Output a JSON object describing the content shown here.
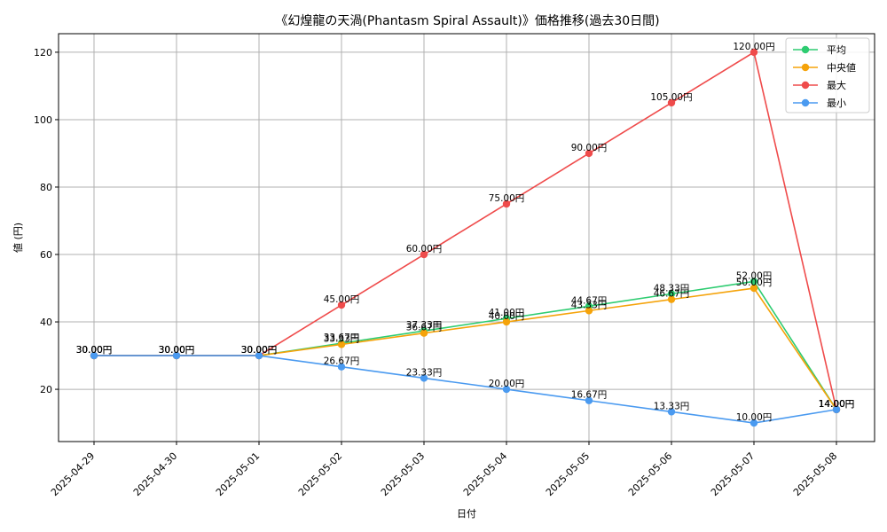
{
  "chart_data": {
    "type": "line",
    "title": "《幻煌龍の天渦(Phantasm Spiral Assault)》価格推移(過去30日間)",
    "xlabel": "日付",
    "ylabel": "値 (円)",
    "categories": [
      "2025-04-29",
      "2025-04-30",
      "2025-05-01",
      "2025-05-02",
      "2025-05-03",
      "2025-05-04",
      "2025-05-05",
      "2025-05-06",
      "2025-05-07",
      "2025-05-08"
    ],
    "ylim": [
      4.5,
      125.5
    ],
    "yticks": [
      20,
      40,
      60,
      80,
      100,
      120
    ],
    "grid": true,
    "legend_position": "top-right",
    "series": [
      {
        "name": "平均",
        "color": "#2ecc71",
        "values": [
          30,
          30,
          30,
          33.67,
          37.33,
          41.0,
          44.67,
          48.33,
          52.0,
          14.0
        ],
        "labels": [
          "30.00円",
          "30.00円",
          "30.00円",
          "33.67円",
          "37.33円",
          "41.00円",
          "44.67円",
          "48.33円",
          "52.00円",
          "14.00円"
        ]
      },
      {
        "name": "中央値",
        "color": "#f5a30a",
        "values": [
          30,
          30,
          30,
          33.33,
          36.67,
          40.0,
          43.33,
          46.67,
          50.0,
          14.0
        ],
        "labels": [
          "30.00円",
          "30.00円",
          "30.00円",
          "33.33円",
          "36.67円",
          "40.00円",
          "43.33円",
          "46.67円",
          "50.00円",
          "14.00円"
        ]
      },
      {
        "name": "最大",
        "color": "#ef4b4b",
        "values": [
          30,
          30,
          30,
          45,
          60,
          75,
          90,
          105,
          120,
          14.0
        ],
        "labels": [
          "30.00円",
          "30.00円",
          "30.00円",
          "45.00円",
          "60.00円",
          "75.00円",
          "90.00円",
          "105.00円",
          "120.00円",
          "14.00円"
        ]
      },
      {
        "name": "最小",
        "color": "#4a9af0",
        "values": [
          30,
          30,
          30,
          26.67,
          23.33,
          20.0,
          16.67,
          13.33,
          10.0,
          14.0
        ],
        "labels": [
          "30.00円",
          "30.00円",
          "30.00円",
          "26.67円",
          "23.33円",
          "20.00円",
          "16.67円",
          "13.33円",
          "10.00円",
          "14.00円"
        ]
      }
    ]
  }
}
